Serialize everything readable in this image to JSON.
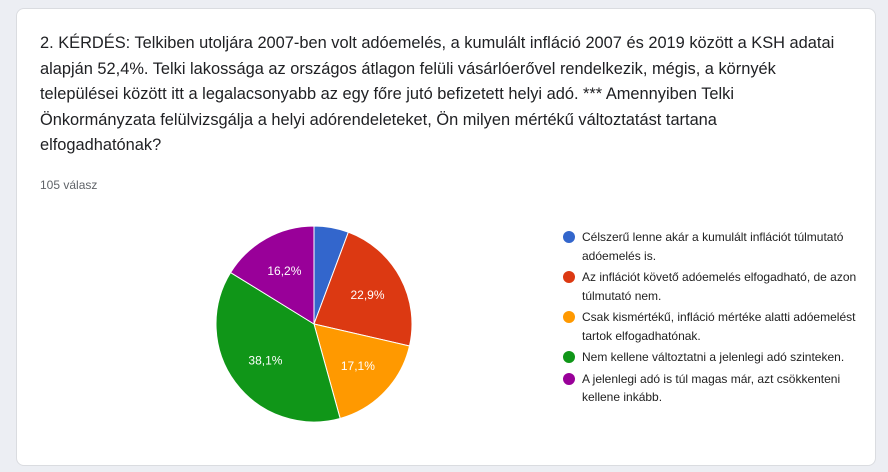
{
  "question": {
    "text": "2. KÉRDÉS: Telkiben utoljára 2007-ben volt adóemelés, a kumulált infláció 2007 és 2019 között a KSH adatai alapján 52,4%. Telki lakossága az országos átlagon felüli vásárlóerővel rendelkezik, mégis, a környék települései között itt a legalacsonyabb az egy főre jutó befizetett helyi adó. *** Amennyiben Telki Önkormányzata felülvizsgálja a helyi adórendeleteket, Ön milyen mértékű változtatást tartana elfogadhatónak?",
    "response_count": "105 válasz"
  },
  "chart_data": {
    "type": "pie",
    "slices": [
      {
        "label": "Célszerű lenne akár a kumulált inflációt túlmutató adóemelés is.",
        "value": 5.7,
        "value_label": "",
        "color": "#3366cc"
      },
      {
        "label": "Az inflációt követő adóemelés elfogadható, de azon túlmutató nem.",
        "value": 22.9,
        "value_label": "22,9%",
        "color": "#dc3912"
      },
      {
        "label": "Csak kismértékű, infláció mértéke alatti adóemelést tartok elfogadhatónak.",
        "value": 17.1,
        "value_label": "17,1%",
        "color": "#ff9900"
      },
      {
        "label": "Nem kellene változtatni a jelenlegi adó szinteken.",
        "value": 38.1,
        "value_label": "38,1%",
        "color": "#109618"
      },
      {
        "label": "A jelenlegi adó is túl magas már, azt csökkenteni kellene inkább.",
        "value": 16.2,
        "value_label": "16,2%",
        "color": "#990099"
      }
    ],
    "legend_position": "right"
  }
}
